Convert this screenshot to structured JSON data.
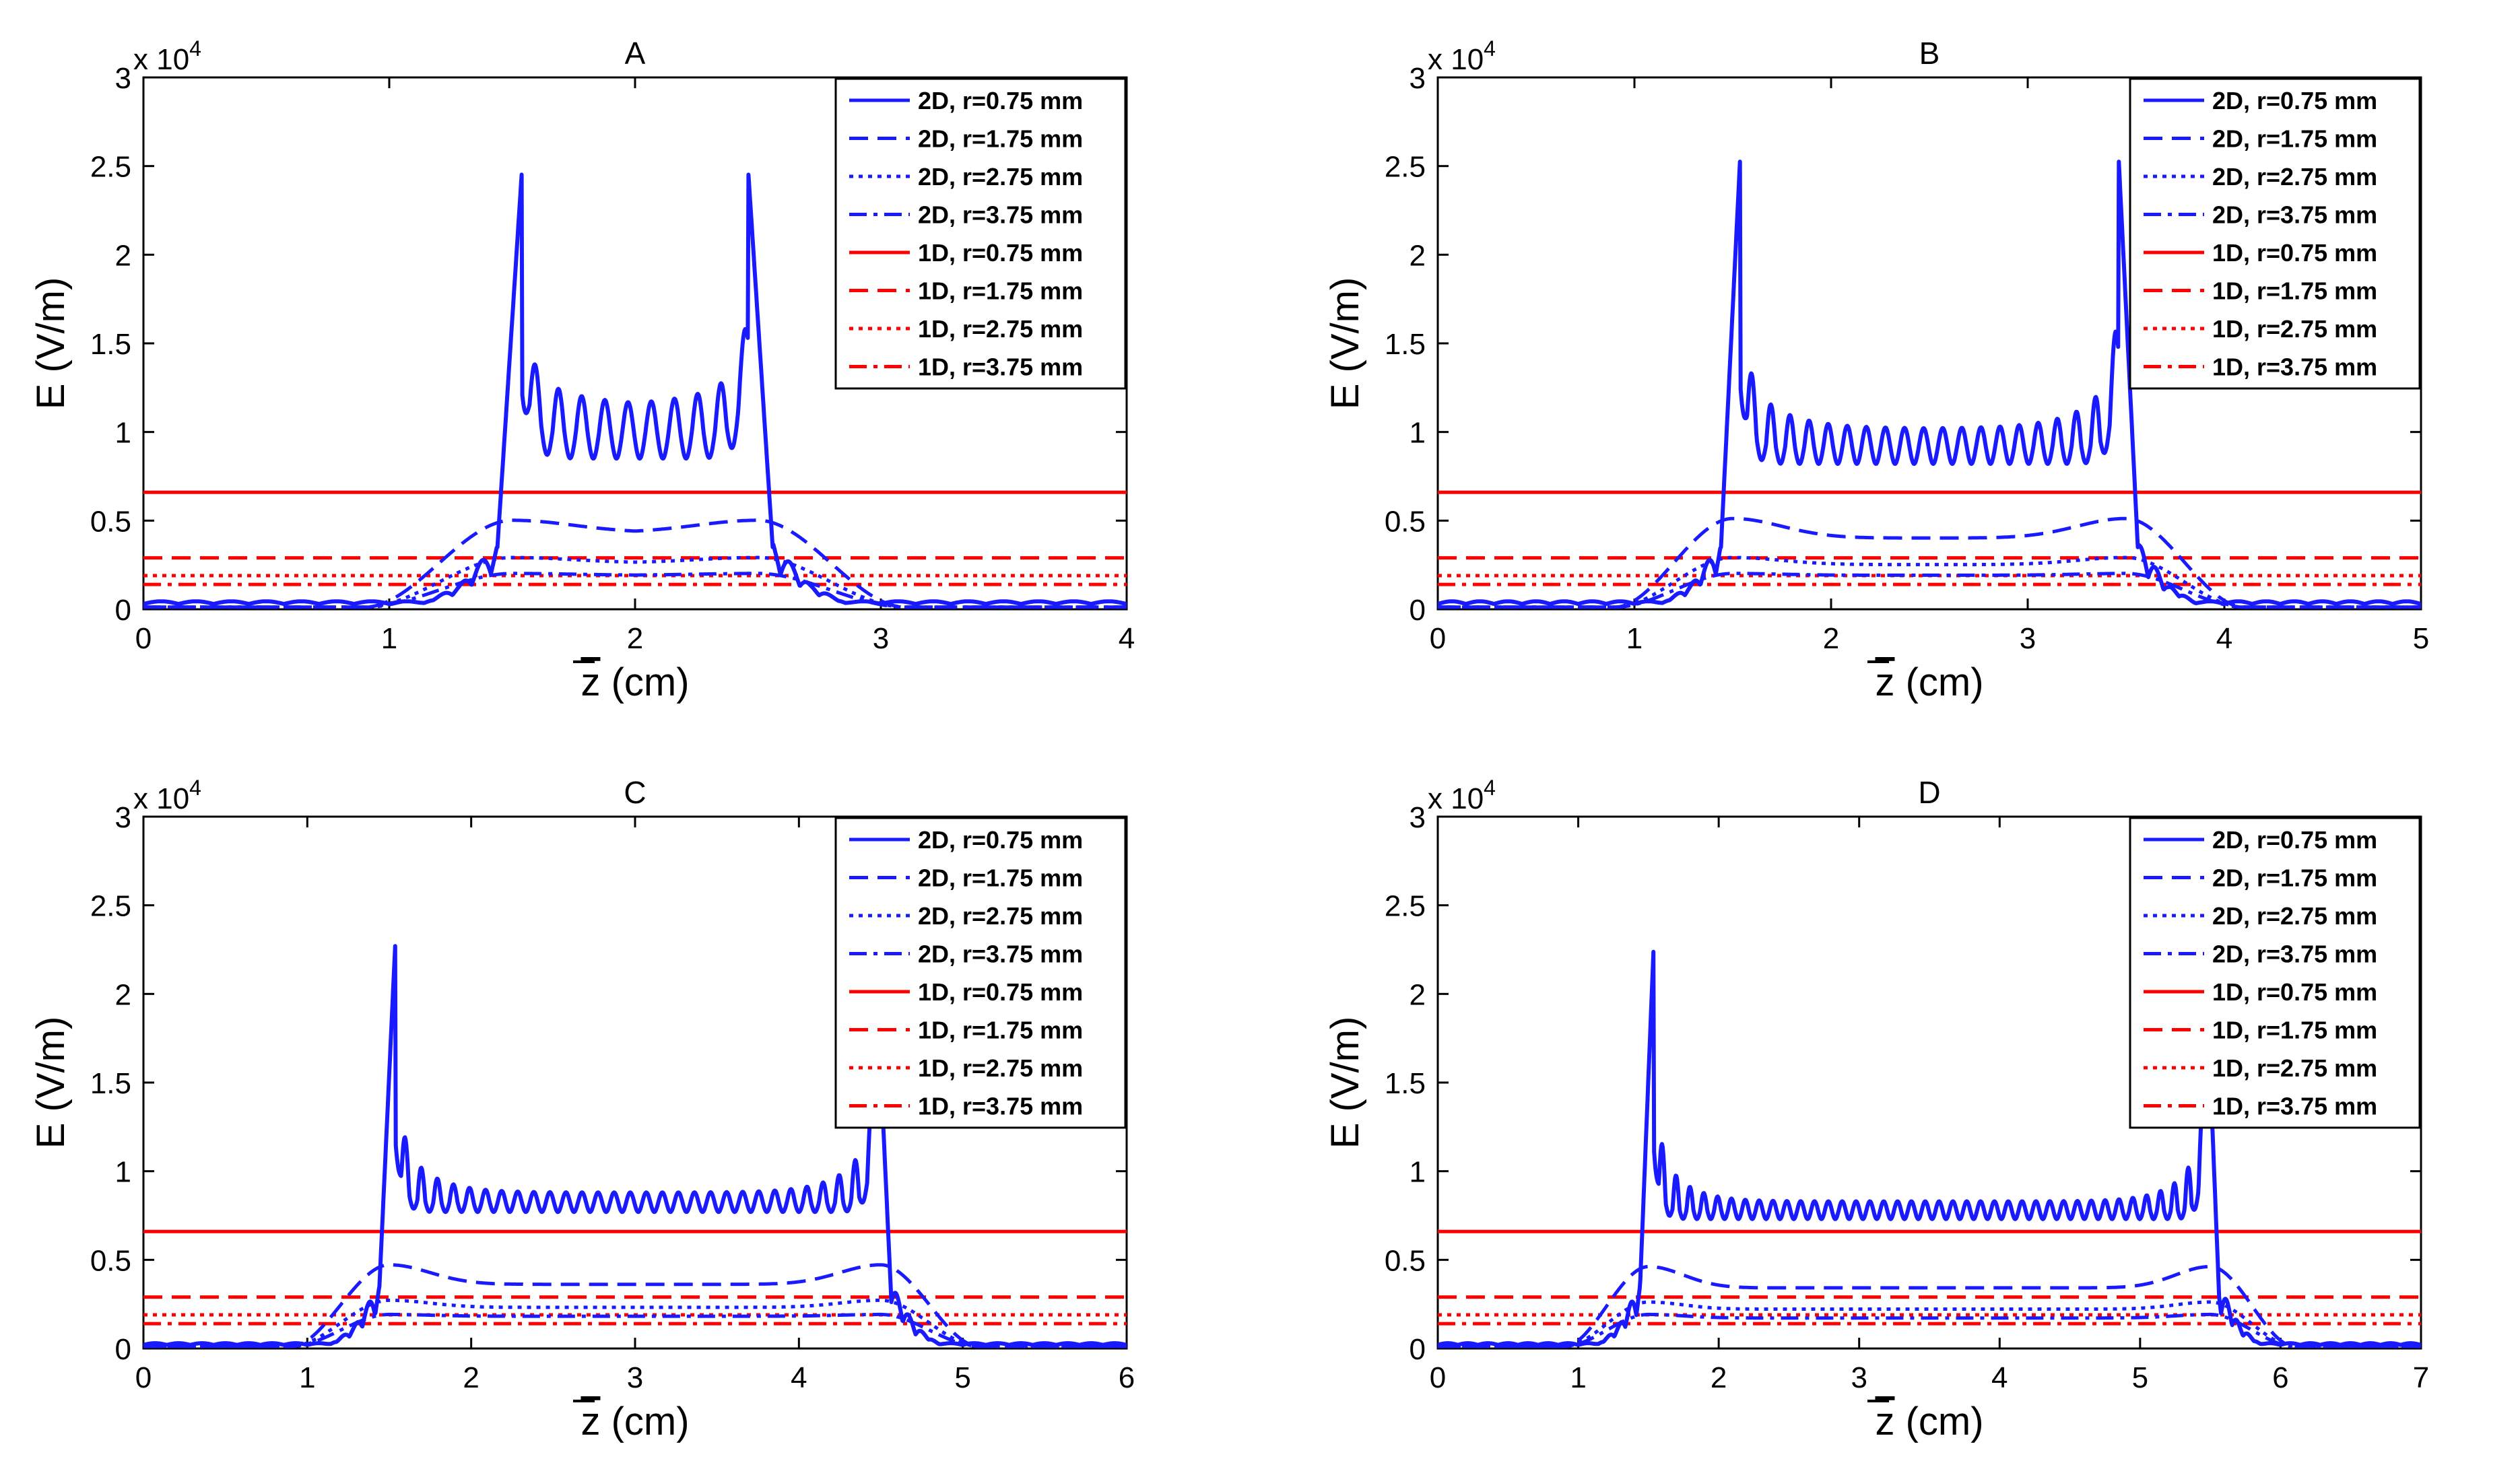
{
  "colors": {
    "series_2d": "#1a1aff",
    "series_1d": "#ff0000",
    "axis": "#000000",
    "background": "#ffffff"
  },
  "shared": {
    "ylabel": "E (V/m)",
    "xlabel_main": "z",
    "xlabel_unit": " (cm)",
    "multiplier_base": "x 10",
    "multiplier_exp": "4",
    "y_ticks": [
      "0",
      "0.5",
      "1",
      "1.5",
      "2",
      "2.5",
      "3"
    ],
    "legend": [
      "2D, r=0.75 mm",
      "2D, r=1.75 mm",
      "2D, r=2.75 mm",
      "2D, r=3.75 mm",
      "1D, r=0.75 mm",
      "1D, r=1.75 mm",
      "1D, r=2.75 mm",
      "1D, r=3.75 mm"
    ]
  },
  "chart_data": [
    {
      "type": "line",
      "title": "A",
      "xlabel": "z (cm)",
      "ylabel": "E (V/m)",
      "xlim": [
        0,
        4
      ],
      "ylim": [
        0,
        30000
      ],
      "x_ticks": [
        "0",
        "1",
        "2",
        "3",
        "4"
      ],
      "series": [
        {
          "name": "2D, r=0.75 mm",
          "region": [
            1.5,
            2.5
          ],
          "peak": 24800,
          "first_ripple": 14000,
          "ripple_max": 11500,
          "ripple_min": 8500,
          "ripples": 9,
          "outside": 300
        },
        {
          "name": "2D, r=1.75 mm",
          "region": [
            1.5,
            2.5
          ],
          "edge": 4900,
          "plateau": 4200
        },
        {
          "name": "2D, r=2.75 mm",
          "region": [
            1.5,
            2.5
          ],
          "edge": 2800,
          "plateau": 2500
        },
        {
          "name": "2D, r=3.75 mm",
          "region": [
            1.5,
            2.5
          ],
          "edge": 1900,
          "plateau": 1800
        },
        {
          "name": "1D, r=0.75 mm",
          "value": 6600
        },
        {
          "name": "1D, r=1.75 mm",
          "value": 2900
        },
        {
          "name": "1D, r=2.75 mm",
          "value": 1900
        },
        {
          "name": "1D, r=3.75 mm",
          "value": 1400
        }
      ]
    },
    {
      "type": "line",
      "title": "B",
      "xlabel": "z (cm)",
      "ylabel": "E (V/m)",
      "xlim": [
        0,
        5
      ],
      "ylim": [
        0,
        30000
      ],
      "x_ticks": [
        "0",
        "1",
        "2",
        "3",
        "4",
        "5"
      ],
      "series": [
        {
          "name": "2D, r=0.75 mm",
          "region": [
            1.5,
            3.5
          ],
          "peak": 26000,
          "first_ripple": 14000,
          "ripple_max": 10200,
          "ripple_min": 8200,
          "ripples": 19,
          "outside": 300
        },
        {
          "name": "2D, r=1.75 mm",
          "region": [
            1.5,
            3.5
          ],
          "edge": 5000,
          "plateau": 3900
        },
        {
          "name": "2D, r=2.75 mm",
          "region": [
            1.5,
            3.5
          ],
          "edge": 2800,
          "plateau": 2400
        },
        {
          "name": "2D, r=3.75 mm",
          "region": [
            1.5,
            3.5
          ],
          "edge": 1900,
          "plateau": 1800
        },
        {
          "name": "1D, r=0.75 mm",
          "value": 6600
        },
        {
          "name": "1D, r=1.75 mm",
          "value": 2900
        },
        {
          "name": "1D, r=2.75 mm",
          "value": 1900
        },
        {
          "name": "1D, r=3.75 mm",
          "value": 1400
        }
      ]
    },
    {
      "type": "line",
      "title": "C",
      "xlabel": "z (cm)",
      "ylabel": "E (V/m)",
      "xlim": [
        0,
        6
      ],
      "ylim": [
        0,
        30000
      ],
      "x_ticks": [
        "0",
        "1",
        "2",
        "3",
        "4",
        "5",
        "6"
      ],
      "series": [
        {
          "name": "2D, r=0.75 mm",
          "region": [
            1.5,
            4.5
          ],
          "peak": 23500,
          "first_ripple": 12800,
          "ripple_max": 8800,
          "ripple_min": 7700,
          "ripples": 29,
          "outside": 200
        },
        {
          "name": "2D, r=1.75 mm",
          "region": [
            1.5,
            4.5
          ],
          "edge": 4600,
          "plateau": 3500
        },
        {
          "name": "2D, r=2.75 mm",
          "region": [
            1.5,
            4.5
          ],
          "edge": 2600,
          "plateau": 2200
        },
        {
          "name": "2D, r=3.75 mm",
          "region": [
            1.5,
            4.5
          ],
          "edge": 1800,
          "plateau": 1700
        },
        {
          "name": "1D, r=0.75 mm",
          "value": 6600
        },
        {
          "name": "1D, r=1.75 mm",
          "value": 2900
        },
        {
          "name": "1D, r=2.75 mm",
          "value": 1900
        },
        {
          "name": "1D, r=3.75 mm",
          "value": 1400
        }
      ]
    },
    {
      "type": "line",
      "title": "D",
      "xlabel": "z (cm)",
      "ylabel": "E (V/m)",
      "xlim": [
        0,
        7
      ],
      "ylim": [
        0,
        30000
      ],
      "x_ticks": [
        "0",
        "1",
        "2",
        "3",
        "4",
        "5",
        "6",
        "7"
      ],
      "series": [
        {
          "name": "2D, r=0.75 mm",
          "region": [
            1.5,
            5.5
          ],
          "peak": 23300,
          "first_ripple": 12500,
          "ripple_max": 8300,
          "ripple_min": 7300,
          "ripples": 39,
          "outside": 200
        },
        {
          "name": "2D, r=1.75 mm",
          "region": [
            1.5,
            5.5
          ],
          "edge": 4500,
          "plateau": 3300
        },
        {
          "name": "2D, r=2.75 mm",
          "region": [
            1.5,
            5.5
          ],
          "edge": 2500,
          "plateau": 2100
        },
        {
          "name": "2D, r=3.75 mm",
          "region": [
            1.5,
            5.5
          ],
          "edge": 1800,
          "plateau": 1600
        },
        {
          "name": "1D, r=0.75 mm",
          "value": 6600
        },
        {
          "name": "1D, r=1.75 mm",
          "value": 2900
        },
        {
          "name": "1D, r=2.75 mm",
          "value": 1900
        },
        {
          "name": "1D, r=3.75 mm",
          "value": 1400
        }
      ]
    }
  ]
}
